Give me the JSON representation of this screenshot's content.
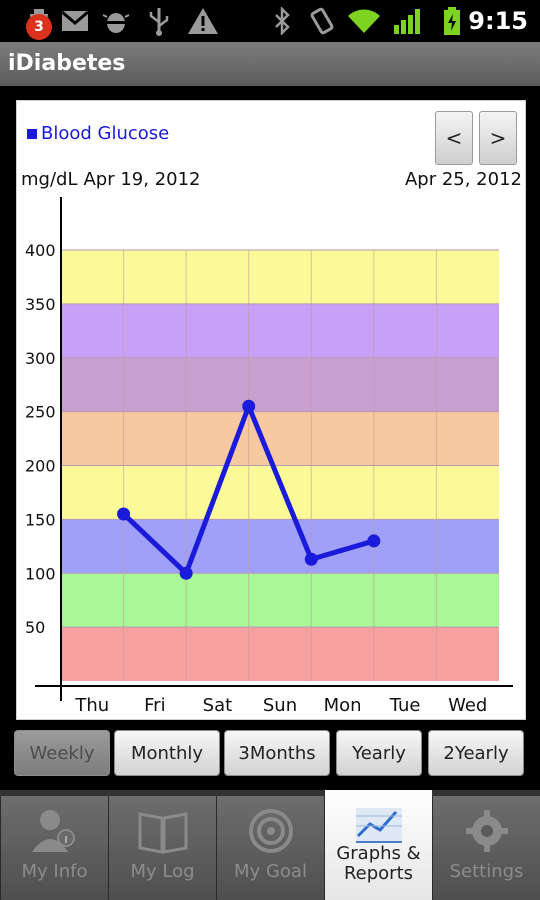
{
  "status_bar": {
    "notification_count": "3",
    "time": "9:15",
    "icons": [
      "notification-icon",
      "gmail-icon",
      "android-debug-icon",
      "usb-icon",
      "warning-icon",
      "bluetooth-icon",
      "vibrate-icon",
      "wifi-icon",
      "signal-icon",
      "battery-icon"
    ]
  },
  "app": {
    "title": "iDiabetes"
  },
  "graph": {
    "legend_label": "Blood Glucose",
    "unit": "mg/dL",
    "start_date": "Apr 19, 2012",
    "end_date": "Apr 25, 2012",
    "prev_label": "<",
    "next_label": ">"
  },
  "chart_data": {
    "type": "line",
    "series": [
      {
        "name": "Blood Glucose",
        "color": "#1a1adb",
        "points": [
          {
            "x": "Fri",
            "y": 155
          },
          {
            "x": "Sat",
            "y": 100
          },
          {
            "x": "Sun",
            "y": 255
          },
          {
            "x": "Mon",
            "y": 113
          },
          {
            "x": "Tue",
            "y": 130
          }
        ]
      }
    ],
    "categories": [
      "Thu",
      "Fri",
      "Sat",
      "Sun",
      "Mon",
      "Tue",
      "Wed"
    ],
    "y_ticks": [
      "50",
      "100",
      "150",
      "200",
      "250",
      "300",
      "350",
      "400"
    ],
    "ylim": [
      0,
      400
    ],
    "bands": [
      {
        "from": 0,
        "to": 50,
        "color": "#f8a0a0"
      },
      {
        "from": 50,
        "to": 100,
        "color": "#a8f898"
      },
      {
        "from": 100,
        "to": 150,
        "color": "#a0a0f8"
      },
      {
        "from": 150,
        "to": 200,
        "color": "#fafa98"
      },
      {
        "from": 200,
        "to": 250,
        "color": "#f8c8a0"
      },
      {
        "from": 250,
        "to": 300,
        "color": "#c8a0d0"
      },
      {
        "from": 300,
        "to": 350,
        "color": "#c8a0f8"
      },
      {
        "from": 350,
        "to": 400,
        "color": "#fafa98"
      }
    ],
    "grid": true
  },
  "period_buttons": [
    {
      "label": "Weekly",
      "active": true
    },
    {
      "label": "Monthly",
      "active": false
    },
    {
      "label": "3Months",
      "active": false
    },
    {
      "label": "Yearly",
      "active": false
    },
    {
      "label": "2Yearly",
      "active": false
    }
  ],
  "tabs": [
    {
      "label": "My Info",
      "icon": "person-info-icon",
      "active": false
    },
    {
      "label": "My Log",
      "icon": "book-icon",
      "active": false
    },
    {
      "label": "My Goal",
      "icon": "target-icon",
      "active": false
    },
    {
      "label": "Graphs & Reports",
      "icon": "graph-icon",
      "active": true
    },
    {
      "label": "Settings",
      "icon": "gear-icon",
      "active": false
    }
  ]
}
